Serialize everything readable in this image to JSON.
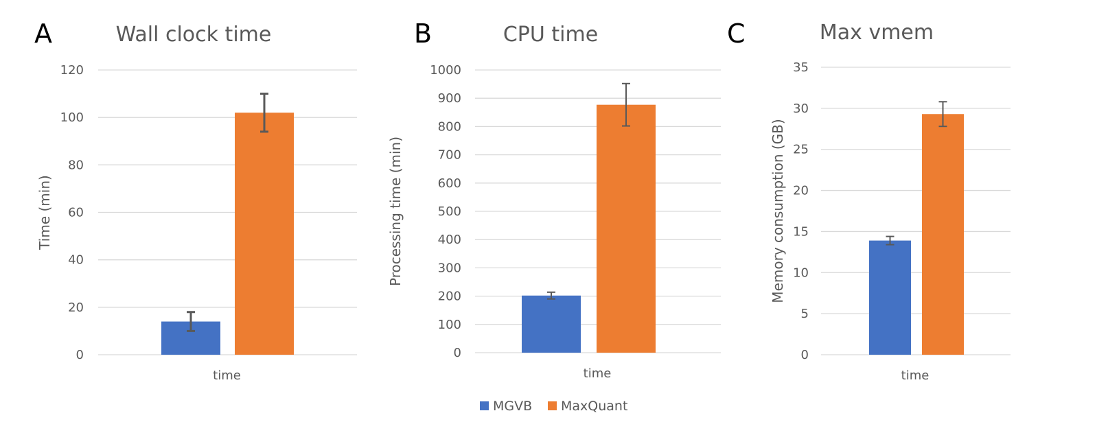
{
  "legend": [
    {
      "name": "MGVB",
      "color": "#4472C4"
    },
    {
      "name": "MaxQuant",
      "color": "#ED7D31"
    }
  ],
  "chart_data": [
    {
      "type": "bar",
      "panel": "A",
      "title": "Wall clock time",
      "xlabel": "",
      "ylabel": "Time (min)",
      "categories": [
        "time"
      ],
      "ylim": [
        0,
        120
      ],
      "yticks": [
        0,
        20,
        40,
        60,
        80,
        100,
        120
      ],
      "grid": true,
      "series": [
        {
          "name": "MGVB",
          "values": [
            14
          ],
          "error": [
            4
          ],
          "color": "#4472C4"
        },
        {
          "name": "MaxQuant",
          "values": [
            102
          ],
          "error": [
            8
          ],
          "color": "#ED7D31"
        }
      ]
    },
    {
      "type": "bar",
      "panel": "B",
      "title": "CPU time",
      "xlabel": "",
      "ylabel": "Processing time (min)",
      "categories": [
        "time"
      ],
      "ylim": [
        0,
        1000
      ],
      "yticks": [
        0,
        100,
        200,
        300,
        400,
        500,
        600,
        700,
        800,
        900,
        1000
      ],
      "grid": true,
      "series": [
        {
          "name": "MGVB",
          "values": [
            202
          ],
          "error": [
            12
          ],
          "color": "#4472C4"
        },
        {
          "name": "MaxQuant",
          "values": [
            877
          ],
          "error": [
            75
          ],
          "color": "#ED7D31"
        }
      ]
    },
    {
      "type": "bar",
      "panel": "C",
      "title": "Max vmem",
      "xlabel": "",
      "ylabel": "Memory consumption (GB)",
      "categories": [
        "time"
      ],
      "ylim": [
        0,
        35
      ],
      "yticks": [
        0,
        5,
        10,
        15,
        20,
        25,
        30,
        35
      ],
      "grid": true,
      "series": [
        {
          "name": "MGVB",
          "values": [
            13.9
          ],
          "error": [
            0.5
          ],
          "color": "#4472C4"
        },
        {
          "name": "MaxQuant",
          "values": [
            29.3
          ],
          "error": [
            1.5
          ],
          "color": "#ED7D31"
        }
      ]
    }
  ]
}
